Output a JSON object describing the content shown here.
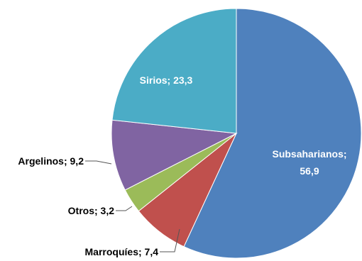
{
  "chart_data": {
    "type": "pie",
    "start_angle_deg": 0,
    "direction": "clockwise",
    "slices": [
      {
        "name": "Subsaharianos",
        "value": 56.9,
        "label": "Subsaharianos;",
        "label2": "56,9",
        "color": "#4F81BD"
      },
      {
        "name": "Marroquíes",
        "value": 7.4,
        "label": "Marroquíes; 7,4",
        "color": "#C0504D"
      },
      {
        "name": "Otros",
        "value": 3.2,
        "label": "Otros; 3,2",
        "color": "#9BBB59"
      },
      {
        "name": "Argelinos",
        "value": 9.2,
        "label": "Argelinos; 9,2",
        "color": "#8064A2"
      },
      {
        "name": "Sirios",
        "value": 23.3,
        "label": "Sirios; 23,3",
        "color": "#4BACC6"
      }
    ]
  }
}
